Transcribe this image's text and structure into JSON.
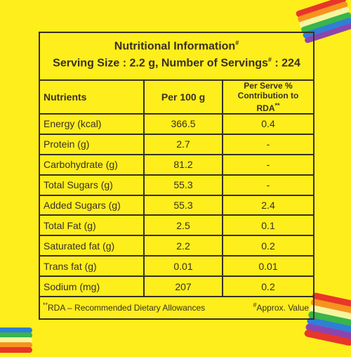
{
  "header": {
    "title": "Nutritional Information",
    "title_mark": "#",
    "serving_line_a": "Serving Size : 2.2 g, Number of Servings",
    "serving_mark": "#",
    "serving_line_b": " : 224"
  },
  "table": {
    "columns": [
      "Nutrients",
      "Per 100 g",
      "Per Serve %",
      "Contribution to RDA"
    ],
    "rda_mark": "**",
    "rows": [
      {
        "nutrient": "Energy (kcal)",
        "per100": "366.5",
        "rda": "0.4"
      },
      {
        "nutrient": "Protein (g)",
        "per100": "2.7",
        "rda": "-"
      },
      {
        "nutrient": "Carbohydrate (g)",
        "per100": "81.2",
        "rda": "-"
      },
      {
        "nutrient": "Total Sugars (g)",
        "per100": "55.3",
        "rda": "-"
      },
      {
        "nutrient": "Added Sugars (g)",
        "per100": "55.3",
        "rda": "2.4"
      },
      {
        "nutrient": "Total Fat (g)",
        "per100": "2.5",
        "rda": "0.1"
      },
      {
        "nutrient": "Saturated fat (g)",
        "per100": "2.2",
        "rda": "0.2"
      },
      {
        "nutrient": "Trans fat (g)",
        "per100": "0.01",
        "rda": "0.01"
      },
      {
        "nutrient": "Sodium (mg)",
        "per100": "207",
        "rda": "0.2"
      }
    ]
  },
  "footer": {
    "rda_mark": "**",
    "rda_note": "RDA – Recommended Dietary Allowances",
    "approx_mark": "#",
    "approx_note": "Approx. Value"
  },
  "colors": {
    "background": "#fdee1c",
    "text": "#3a2f24",
    "candy": [
      "#e8362a",
      "#f7931e",
      "#f5e21b",
      "#39b54a",
      "#2e7fd6",
      "#8e44ad"
    ]
  }
}
